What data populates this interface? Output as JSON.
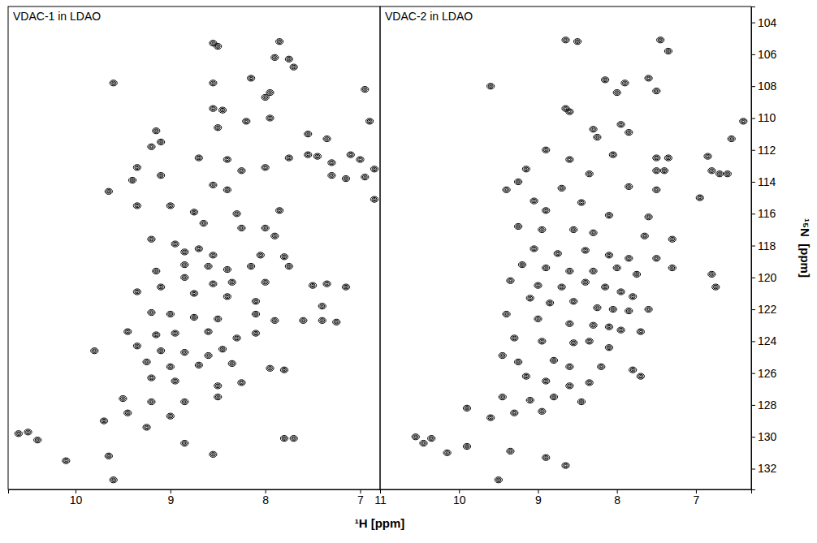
{
  "chart_data": {
    "type": "scatter",
    "marker": "contour",
    "xlabel": "¹H [ppm]",
    "ylabel": "¹⁵N  [ppm]",
    "ylim": [
      103.0,
      133.3
    ],
    "yticks": [
      104,
      106,
      108,
      110,
      112,
      114,
      116,
      118,
      120,
      122,
      124,
      126,
      128,
      130,
      132
    ],
    "panels": [
      {
        "title": "VDAC-1 in LDAO",
        "xlim": [
          10.71,
          6.79
        ],
        "xticks": [
          10,
          9,
          8,
          7
        ],
        "x": [
          8.55,
          8.5,
          7.85,
          7.75,
          7.7,
          7.9,
          9.6,
          8.55,
          8.15,
          7.95,
          8.0,
          8.55,
          8.45,
          8.5,
          8.2,
          7.95,
          9.15,
          9.1,
          9.2,
          7.55,
          7.35,
          7.55,
          7.75,
          7.45,
          7.3,
          7.1,
          7.0,
          6.9,
          6.95,
          8.4,
          8.7,
          8.25,
          8.0,
          7.3,
          7.15,
          6.95,
          6.85,
          6.85,
          9.1,
          9.35,
          9.4,
          8.55,
          8.4,
          9.65,
          9.35,
          9.0,
          8.75,
          8.3,
          7.85,
          8.65,
          8.25,
          8.0,
          7.9,
          9.2,
          8.95,
          8.85,
          8.7,
          8.55,
          8.05,
          7.8,
          8.85,
          8.6,
          8.4,
          8.15,
          7.75,
          9.15,
          8.85,
          8.55,
          8.35,
          8.0,
          7.5,
          7.35,
          7.15,
          9.35,
          9.1,
          8.75,
          8.4,
          8.1,
          7.4,
          9.2,
          9.0,
          8.75,
          8.5,
          8.1,
          7.9,
          7.6,
          7.4,
          7.25,
          9.45,
          9.15,
          8.95,
          8.6,
          8.3,
          8.1,
          9.35,
          9.1,
          8.85,
          8.6,
          8.45,
          9.8,
          9.25,
          9.0,
          8.7,
          8.35,
          7.95,
          7.8,
          9.2,
          8.95,
          8.5,
          8.25,
          9.5,
          9.2,
          8.85,
          8.5,
          9.45,
          9.0,
          9.25,
          9.7,
          10.5,
          10.6,
          10.4,
          8.85,
          7.8,
          7.7,
          9.65,
          10.1,
          8.55,
          9.6
        ],
        "y": [
          105.3,
          105.5,
          105.2,
          106.3,
          106.8,
          106.2,
          107.8,
          107.8,
          107.5,
          108.4,
          108.7,
          109.4,
          109.5,
          110.6,
          110.2,
          110.0,
          110.8,
          111.5,
          111.8,
          111.0,
          111.3,
          112.3,
          112.5,
          112.4,
          112.8,
          112.3,
          112.6,
          110.2,
          108.2,
          112.6,
          112.5,
          113.3,
          113.1,
          113.6,
          113.8,
          113.7,
          113.2,
          115.1,
          113.6,
          113.1,
          113.9,
          114.2,
          114.5,
          114.6,
          115.5,
          115.5,
          115.9,
          116.0,
          115.8,
          116.6,
          116.9,
          116.9,
          117.4,
          117.6,
          117.9,
          118.4,
          118.2,
          118.6,
          118.6,
          118.7,
          119.2,
          119.3,
          119.5,
          119.3,
          119.3,
          119.6,
          120.0,
          120.4,
          120.3,
          120.3,
          120.5,
          120.4,
          120.6,
          120.9,
          120.6,
          121.0,
          121.2,
          121.5,
          121.8,
          122.2,
          122.3,
          122.5,
          122.6,
          122.3,
          122.7,
          122.7,
          122.7,
          122.8,
          123.4,
          123.6,
          123.5,
          123.4,
          123.8,
          123.5,
          124.3,
          124.6,
          124.7,
          124.9,
          124.5,
          124.6,
          125.3,
          125.6,
          125.5,
          125.4,
          125.7,
          125.8,
          126.3,
          126.5,
          126.8,
          126.6,
          127.6,
          127.8,
          127.8,
          127.5,
          128.5,
          128.7,
          129.4,
          129.0,
          129.7,
          129.8,
          130.2,
          130.4,
          130.1,
          130.1,
          131.2,
          131.5,
          131.1,
          132.7
        ]
      },
      {
        "title": "VDAC-2 in LDAO",
        "xlim": [
          11.0,
          6.3
        ],
        "xticks": [
          11,
          10,
          9,
          8,
          7
        ],
        "x": [
          8.65,
          8.5,
          7.45,
          7.35,
          9.6,
          8.65,
          8.6,
          8.15,
          7.9,
          8.0,
          7.6,
          7.5,
          8.3,
          8.25,
          7.95,
          7.85,
          8.05,
          7.5,
          7.4,
          7.35,
          7.5,
          6.85,
          6.8,
          6.7,
          6.6,
          6.4,
          6.55,
          8.6,
          8.9,
          8.35,
          9.15,
          9.25,
          9.4,
          8.7,
          7.85,
          7.5,
          6.95,
          9.05,
          8.45,
          8.1,
          8.9,
          7.6,
          9.25,
          8.95,
          8.55,
          8.3,
          7.65,
          7.3,
          9.05,
          8.75,
          8.4,
          8.1,
          7.85,
          7.5,
          9.2,
          8.9,
          8.6,
          8.3,
          8.0,
          7.75,
          7.3,
          9.35,
          9.0,
          8.7,
          8.4,
          8.15,
          7.95,
          7.8,
          6.75,
          6.8,
          9.1,
          8.85,
          8.55,
          8.25,
          8.05,
          7.85,
          7.6,
          9.4,
          9.0,
          8.6,
          8.3,
          8.1,
          7.95,
          7.7,
          9.3,
          8.95,
          8.55,
          8.35,
          8.1,
          9.45,
          9.25,
          8.8,
          8.6,
          8.2,
          7.8,
          7.7,
          9.15,
          8.9,
          8.6,
          8.35,
          9.45,
          9.1,
          8.8,
          8.45,
          9.3,
          8.95,
          9.6,
          9.9,
          10.55,
          10.45,
          10.35,
          9.9,
          10.15,
          9.35,
          8.9,
          8.65,
          9.5
        ],
        "y": [
          105.1,
          105.2,
          105.1,
          105.8,
          108.0,
          109.4,
          109.6,
          107.6,
          107.8,
          108.4,
          107.5,
          108.3,
          110.7,
          111.2,
          110.4,
          110.9,
          112.3,
          112.5,
          113.3,
          112.5,
          113.3,
          112.4,
          113.3,
          113.5,
          113.5,
          110.2,
          111.3,
          112.6,
          112.0,
          113.5,
          113.2,
          114.0,
          114.5,
          114.4,
          114.3,
          114.5,
          115.0,
          115.2,
          115.3,
          116.1,
          115.8,
          116.2,
          116.8,
          117.0,
          117.0,
          117.2,
          117.4,
          117.6,
          118.2,
          118.5,
          118.3,
          118.6,
          118.8,
          118.8,
          119.2,
          119.4,
          119.6,
          119.6,
          119.4,
          119.8,
          119.4,
          120.2,
          120.5,
          120.6,
          120.3,
          120.6,
          120.9,
          121.2,
          120.6,
          119.8,
          121.3,
          121.6,
          121.5,
          121.9,
          122.0,
          122.1,
          122.0,
          122.3,
          122.6,
          122.9,
          123.0,
          123.1,
          123.3,
          123.4,
          123.8,
          124.0,
          124.1,
          124.0,
          124.4,
          124.9,
          125.3,
          125.2,
          125.6,
          125.6,
          125.8,
          126.2,
          126.2,
          126.5,
          126.8,
          126.6,
          127.5,
          127.7,
          127.5,
          127.8,
          128.5,
          128.4,
          128.8,
          128.2,
          130.0,
          130.4,
          130.1,
          130.6,
          131.0,
          130.9,
          131.3,
          131.8,
          132.7
        ]
      }
    ]
  }
}
